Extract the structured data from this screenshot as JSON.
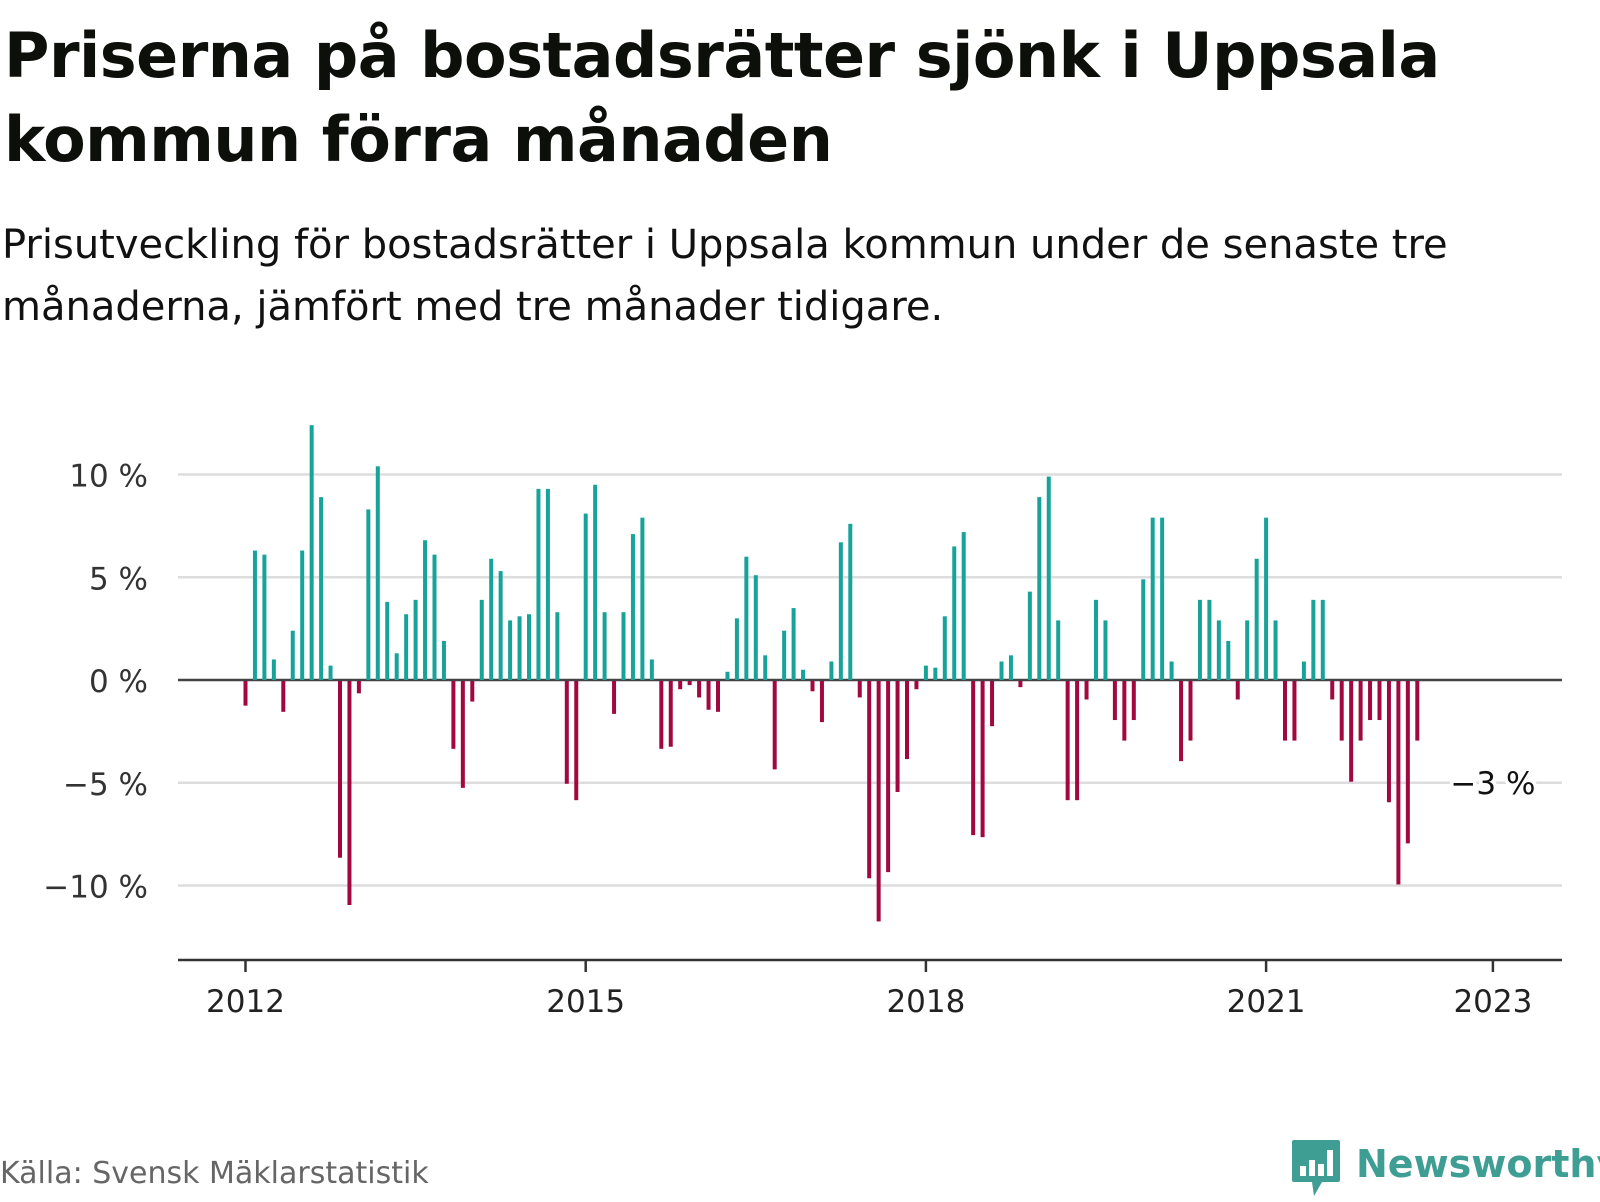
{
  "header": {
    "title": "Priserna på bostadsrätter sjönk i Uppsala kommun förra månaden",
    "subtitle": "Prisutveckling för bostadsrätter i Uppsala kommun under de senaste tre månaderna, jämfört med tre månader tidigare."
  },
  "footer": {
    "source": "Källa: Svensk Mäklarstatistik",
    "brand": "Newsworthy"
  },
  "colors": {
    "positive": "#17a39a",
    "negative": "#a0083f",
    "brand": "#3f9e94",
    "grid": "#dddddd",
    "axis": "#333333"
  },
  "icons": {
    "logo": "newsworthy-chart-bubble-icon"
  },
  "chart_data": {
    "type": "bar",
    "xlabel": "",
    "ylabel": "",
    "x_start": "2012-01",
    "ylim": [
      -13.5,
      12.5
    ],
    "y_ticks": [
      10,
      5,
      0,
      -5,
      -10
    ],
    "y_tick_labels": [
      "10 %",
      "5 %",
      "0 %",
      "−5 %",
      "−10 %"
    ],
    "x_tick_labels": [
      {
        "label": "2012",
        "date": "2012-01"
      },
      {
        "label": "2015",
        "date": "2015-01"
      },
      {
        "label": "2018",
        "date": "2018-01"
      },
      {
        "label": "2021",
        "date": "2021-01"
      },
      {
        "label": "2023",
        "date": "2023-01"
      }
    ],
    "grid": true,
    "annotation": {
      "text": "−3 %",
      "date": "2023-01",
      "value": -2.9
    },
    "values": [
      -1.2,
      6.3,
      6.1,
      1.0,
      -1.5,
      2.4,
      6.3,
      12.4,
      8.9,
      0.7,
      -8.6,
      -10.9,
      -0.6,
      8.3,
      10.4,
      3.8,
      1.3,
      3.2,
      3.9,
      6.8,
      6.1,
      1.9,
      -3.3,
      -5.2,
      -1.0,
      3.9,
      5.9,
      5.3,
      2.9,
      3.1,
      3.2,
      9.3,
      9.3,
      3.3,
      -5.0,
      -5.8,
      8.1,
      9.5,
      3.3,
      -1.6,
      3.3,
      7.1,
      7.9,
      1.0,
      -3.3,
      -3.2,
      -0.4,
      -0.2,
      -0.8,
      -1.4,
      -1.5,
      0.4,
      3.0,
      6.0,
      5.1,
      1.2,
      -4.3,
      2.4,
      3.5,
      0.5,
      -0.5,
      -2.0,
      0.9,
      6.7,
      7.6,
      -0.8,
      -9.6,
      -11.7,
      -9.3,
      -5.4,
      -3.8,
      -0.4,
      0.7,
      0.6,
      3.1,
      6.5,
      7.2,
      -7.5,
      -7.6,
      -2.2,
      0.9,
      1.2,
      -0.3,
      4.3,
      8.9,
      9.9,
      2.9,
      -5.8,
      -5.8,
      -0.9,
      3.9,
      2.9,
      -1.9,
      -2.9,
      -1.9,
      4.9,
      7.9,
      7.9,
      0.9,
      -3.9,
      -2.9,
      3.9,
      3.9,
      2.9,
      1.9,
      -0.9,
      2.9,
      5.9,
      7.9,
      2.9,
      -2.9,
      -2.9,
      0.9,
      3.9,
      3.9,
      -0.9,
      -2.9,
      -4.9,
      -2.9,
      -1.9,
      -1.9,
      -5.9,
      -9.9,
      -7.9,
      -2.9
    ]
  }
}
